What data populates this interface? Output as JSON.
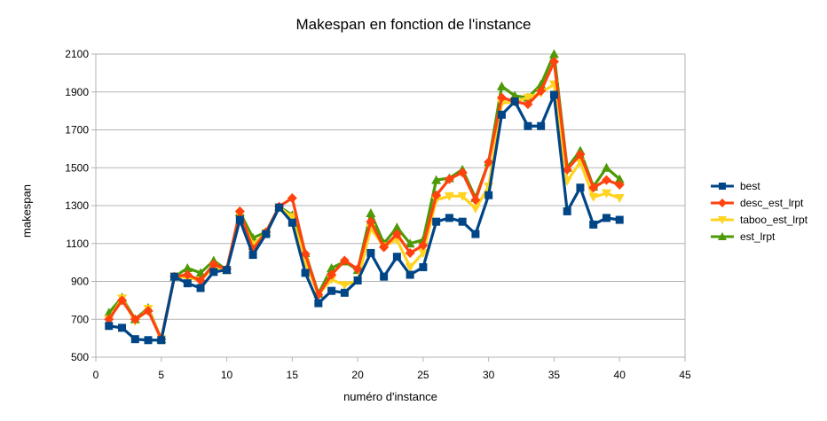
{
  "chart_data": {
    "type": "line",
    "title": "Makespan en fonction de l'instance",
    "xlabel": "numéro d'instance",
    "ylabel": "makespan",
    "xlim": [
      0,
      45
    ],
    "ylim": [
      500,
      2100
    ],
    "xticks": [
      "0",
      "5",
      "10",
      "15",
      "20",
      "25",
      "30",
      "35",
      "40",
      "45"
    ],
    "yticks": [
      "500",
      "700",
      "900",
      "1100",
      "1300",
      "1500",
      "1700",
      "1900",
      "2100"
    ],
    "grid": "horizontal",
    "legend_position": "right",
    "x": [
      1,
      2,
      3,
      4,
      5,
      6,
      7,
      8,
      9,
      10,
      11,
      12,
      13,
      14,
      15,
      16,
      17,
      18,
      19,
      20,
      21,
      22,
      23,
      24,
      25,
      26,
      27,
      28,
      29,
      30,
      31,
      32,
      33,
      34,
      35,
      36,
      37,
      38,
      39,
      40
    ],
    "series": [
      {
        "name": "est_lrpt",
        "color": "#4e9a06",
        "marker": "triangle-up",
        "values": [
          735,
          815,
          700,
          760,
          595,
          925,
          970,
          945,
          1010,
          960,
          1265,
          1130,
          1160,
          1295,
          1250,
          1050,
          835,
          970,
          1005,
          960,
          1260,
          1100,
          1185,
          1100,
          1120,
          1435,
          1445,
          1490,
          1340,
          1530,
          1930,
          1880,
          1870,
          1940,
          2100,
          1500,
          1590,
          1400,
          1500,
          1440
        ]
      },
      {
        "name": "taboo_est_lrpt",
        "color": "#ffd320",
        "marker": "triangle-down",
        "values": [
          700,
          810,
          690,
          755,
          595,
          925,
          920,
          905,
          975,
          960,
          1250,
          1095,
          1155,
          1290,
          1240,
          1000,
          830,
          910,
          880,
          905,
          1180,
          1085,
          1120,
          975,
          1050,
          1330,
          1350,
          1350,
          1285,
          1400,
          1840,
          1850,
          1870,
          1895,
          1940,
          1430,
          1530,
          1345,
          1365,
          1340
        ]
      },
      {
        "name": "desc_est_lrpt",
        "color": "#ff420e",
        "marker": "diamond",
        "values": [
          700,
          800,
          700,
          745,
          595,
          925,
          935,
          905,
          990,
          965,
          1270,
          1070,
          1160,
          1295,
          1340,
          1045,
          830,
          935,
          1010,
          965,
          1215,
          1080,
          1150,
          1050,
          1090,
          1355,
          1440,
          1475,
          1330,
          1530,
          1870,
          1850,
          1835,
          1905,
          2060,
          1490,
          1570,
          1395,
          1435,
          1410
        ]
      },
      {
        "name": "best",
        "color": "#004586",
        "marker": "square",
        "values": [
          665,
          655,
          595,
          590,
          590,
          925,
          890,
          865,
          950,
          960,
          1225,
          1040,
          1150,
          1290,
          1210,
          945,
          785,
          850,
          840,
          905,
          1050,
          925,
          1030,
          935,
          975,
          1215,
          1235,
          1215,
          1150,
          1355,
          1780,
          1850,
          1720,
          1720,
          1885,
          1270,
          1395,
          1200,
          1235,
          1225
        ]
      }
    ],
    "legend_order": [
      "best",
      "desc_est_lrpt",
      "taboo_est_lrpt",
      "est_lrpt"
    ]
  }
}
